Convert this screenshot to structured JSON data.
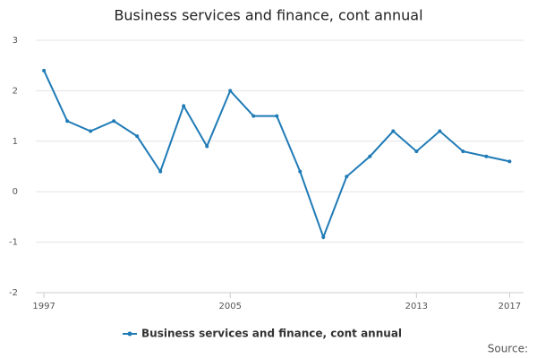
{
  "chart_data": {
    "type": "line",
    "title": "Business services and finance, cont annual",
    "x": [
      1997,
      1998,
      1999,
      2000,
      2001,
      2002,
      2003,
      2004,
      2005,
      2006,
      2007,
      2008,
      2009,
      2010,
      2011,
      2012,
      2013,
      2014,
      2015,
      2016,
      2017
    ],
    "series": [
      {
        "name": "Business services and finance, cont annual",
        "color": "#1f7bb6",
        "values": [
          2.4,
          1.4,
          1.2,
          1.4,
          1.1,
          0.4,
          1.7,
          0.9,
          2.0,
          1.5,
          1.5,
          0.4,
          -0.9,
          0.3,
          0.7,
          1.2,
          0.8,
          1.2,
          0.8,
          0.7,
          0.6
        ]
      }
    ],
    "xlim": [
      1996.65,
      2017.6
    ],
    "xticks": [
      1997,
      2005,
      2013,
      2017
    ],
    "ylim": [
      -2,
      3
    ],
    "yticks": [
      -2,
      -1,
      0,
      1,
      2,
      3
    ],
    "grid": true,
    "legend": "bottom",
    "source": "Source:"
  }
}
